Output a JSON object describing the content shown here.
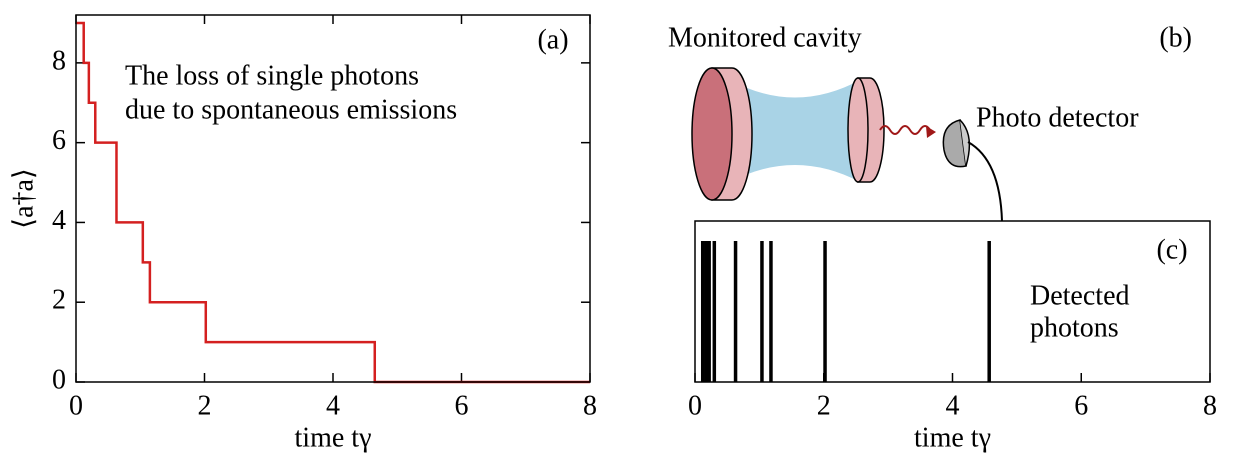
{
  "chart_data": [
    {
      "type": "line",
      "annotation": "(a)",
      "text": [
        "The loss of single photons",
        "due to spontaneous emissions"
      ],
      "xlabel": "time tγ",
      "ylabel": "⟨a†a⟩",
      "x": [
        0,
        0.12,
        0.12,
        0.2,
        0.2,
        0.3,
        0.3,
        0.63,
        0.63,
        1.04,
        1.04,
        1.15,
        1.15,
        2.02,
        2.02,
        4.65,
        4.65,
        8
      ],
      "values": [
        9,
        9,
        8,
        8,
        7,
        7,
        6,
        6,
        4,
        4,
        3,
        3,
        2,
        2,
        1,
        1,
        0,
        0
      ],
      "color": "#d42020",
      "xlim": [
        0,
        8
      ],
      "xticks": [
        0,
        2,
        4,
        6,
        8
      ],
      "ylim": [
        0,
        9.2
      ],
      "yticks": [
        0,
        2,
        4,
        6,
        8
      ]
    },
    {
      "type": "event",
      "annotation": "(c)",
      "text": [
        "Detected",
        "photons"
      ],
      "xlabel": "time tγ",
      "values": [
        0.12,
        0.17,
        0.22,
        0.3,
        0.63,
        1.04,
        1.18,
        2.02,
        4.57
      ],
      "color": "#000000",
      "xlim": [
        0,
        8
      ],
      "xticks": [
        0,
        2,
        4,
        6,
        8
      ]
    }
  ],
  "diagram": {
    "annotation": "(b)",
    "cavity_label": "Monitored cavity",
    "detector_label": "Photo detector"
  }
}
